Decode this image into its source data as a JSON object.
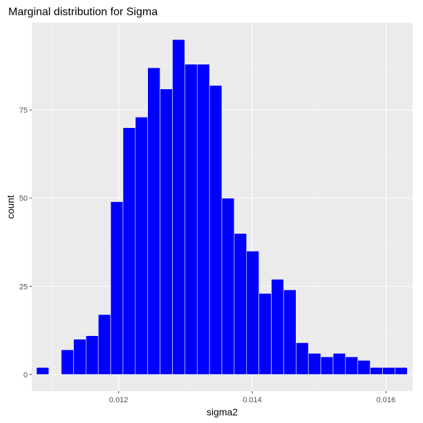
{
  "chart_data": {
    "type": "bar",
    "title": "Marginal distribution for Sigma",
    "xlabel": "sigma2",
    "ylabel": "count",
    "bin_width": 0.000185,
    "x_bins": [
      {
        "x0": 0.01077,
        "x1": 0.010955,
        "count": 2
      },
      {
        "x0": 0.010955,
        "x1": 0.01114,
        "count": 0
      },
      {
        "x0": 0.01114,
        "x1": 0.011325,
        "count": 7
      },
      {
        "x0": 0.011325,
        "x1": 0.01151,
        "count": 10
      },
      {
        "x0": 0.01151,
        "x1": 0.011695,
        "count": 11
      },
      {
        "x0": 0.011695,
        "x1": 0.01188,
        "count": 17
      },
      {
        "x0": 0.01188,
        "x1": 0.012065,
        "count": 49
      },
      {
        "x0": 0.012065,
        "x1": 0.01225,
        "count": 70
      },
      {
        "x0": 0.01225,
        "x1": 0.012435,
        "count": 73
      },
      {
        "x0": 0.012435,
        "x1": 0.01262,
        "count": 87
      },
      {
        "x0": 0.01262,
        "x1": 0.012805,
        "count": 81
      },
      {
        "x0": 0.012805,
        "x1": 0.01299,
        "count": 95
      },
      {
        "x0": 0.01299,
        "x1": 0.013175,
        "count": 88
      },
      {
        "x0": 0.013175,
        "x1": 0.01336,
        "count": 88
      },
      {
        "x0": 0.01336,
        "x1": 0.013545,
        "count": 82
      },
      {
        "x0": 0.013545,
        "x1": 0.01373,
        "count": 50
      },
      {
        "x0": 0.01373,
        "x1": 0.013915,
        "count": 40
      },
      {
        "x0": 0.013915,
        "x1": 0.0141,
        "count": 35
      },
      {
        "x0": 0.0141,
        "x1": 0.014285,
        "count": 23
      },
      {
        "x0": 0.014285,
        "x1": 0.01447,
        "count": 27
      },
      {
        "x0": 0.01447,
        "x1": 0.014655,
        "count": 24
      },
      {
        "x0": 0.014655,
        "x1": 0.01484,
        "count": 9
      },
      {
        "x0": 0.01484,
        "x1": 0.015025,
        "count": 6
      },
      {
        "x0": 0.015025,
        "x1": 0.01521,
        "count": 5
      },
      {
        "x0": 0.01521,
        "x1": 0.015395,
        "count": 6
      },
      {
        "x0": 0.015395,
        "x1": 0.01558,
        "count": 5
      },
      {
        "x0": 0.01558,
        "x1": 0.015765,
        "count": 4
      },
      {
        "x0": 0.015765,
        "x1": 0.01595,
        "count": 2
      },
      {
        "x0": 0.01595,
        "x1": 0.016135,
        "count": 2
      },
      {
        "x0": 0.016135,
        "x1": 0.01632,
        "count": 2
      }
    ],
    "xlim": [
      0.0107,
      0.0164
    ],
    "ylim": [
      -4.75,
      99.75
    ],
    "x_ticks": [
      0.012,
      0.014,
      0.016
    ],
    "x_tick_labels": [
      "0.012",
      "0.014",
      "0.016"
    ],
    "x_minor_ticks": [
      0.011,
      0.013,
      0.015
    ],
    "y_ticks": [
      0,
      25,
      50,
      75
    ],
    "y_tick_labels": [
      "0",
      "25",
      "50",
      "75"
    ],
    "y_minor_ticks": [
      12.5,
      37.5,
      62.5,
      87.5
    ],
    "grid": true,
    "legend": "none",
    "colors": {
      "bar_fill": "#0000FF",
      "bar_outline": "#FFFFFF",
      "panel_background": "#EBEBEB",
      "grid_major": "#FFFFFF",
      "grid_minor": "#F5F5F5",
      "tick_text": "#4D4D4D",
      "title_text": "#000000"
    }
  }
}
